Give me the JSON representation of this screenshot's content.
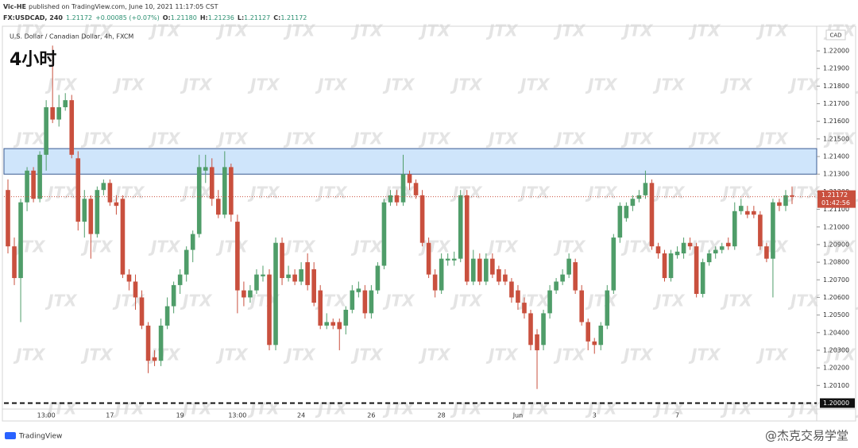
{
  "header": {
    "author": "Vic-HE",
    "published": "published on TradingView.com, June 10, 2021 11:17:05 CST",
    "symbol": "FX:USDCAD, 240",
    "last": "1.21172",
    "change": "+0.00085 (+0.07%)",
    "ohlc": [
      {
        "key": "O:",
        "value": "1.21180"
      },
      {
        "key": "H:",
        "value": "1.21236"
      },
      {
        "key": "L:",
        "value": "1.21127"
      },
      {
        "key": "C:",
        "value": "1.21172"
      }
    ]
  },
  "chart_data": {
    "type": "candlestick",
    "title": "U.S. Dollar / Canadian Dollar, 4h, FXCM",
    "annotation": "4小时",
    "currency": "CAD",
    "categories": [
      null,
      null,
      null,
      null,
      null,
      null,
      "13:00",
      null,
      null,
      null,
      null,
      null,
      null,
      null,
      null,
      null,
      "17",
      null,
      null,
      null,
      null,
      null,
      null,
      null,
      null,
      null,
      null,
      "19",
      null,
      null,
      null,
      null,
      null,
      null,
      null,
      null,
      "13:00",
      null,
      null,
      null,
      null,
      null,
      null,
      null,
      null,
      null,
      "24",
      null,
      null,
      null,
      null,
      null,
      null,
      null,
      null,
      null,
      null,
      "26",
      null,
      null,
      null,
      null,
      null,
      null,
      null,
      null,
      null,
      null,
      "28",
      null,
      null,
      null,
      null,
      null,
      null,
      null,
      null,
      null,
      null,
      null,
      "Jun",
      null,
      null,
      null,
      null,
      null,
      null,
      null,
      null,
      null,
      null,
      null,
      "3",
      null,
      null,
      null,
      null,
      null,
      null,
      null,
      null,
      null,
      null,
      null,
      null,
      "7",
      null,
      null,
      null,
      null,
      null,
      null,
      null,
      null,
      null,
      null,
      null,
      null,
      null,
      null,
      null,
      null,
      null,
      null
    ],
    "open": [
      1.2121,
      1.2089,
      1.2071,
      1.2114,
      1.2132,
      1.2116,
      1.2141,
      1.2168,
      1.2161,
      1.2168,
      1.2172,
      1.2139,
      1.2103,
      1.2116,
      1.2096,
      1.2121,
      1.2125,
      1.2114,
      1.2116,
      1.2073,
      1.2069,
      1.206,
      1.2044,
      1.2026,
      1.2024,
      1.2044,
      1.2055,
      1.2067,
      1.2073,
      1.2087,
      1.2096,
      1.2132,
      1.2134,
      1.2116,
      1.2107,
      1.2134,
      1.2103,
      1.2064,
      1.206,
      1.2064,
      1.2072,
      1.2073,
      1.2033,
      1.2091,
      1.2071,
      1.2073,
      1.2069,
      1.208,
      1.2076,
      1.2064,
      1.2044,
      1.2046,
      1.2046,
      1.2044,
      1.2053,
      1.2063,
      1.2064,
      1.2051,
      1.2064,
      1.2078,
      1.2114,
      1.2118,
      1.2114,
      1.213,
      1.2125,
      1.2118,
      1.2091,
      1.2073,
      1.2064,
      1.2081,
      1.2081,
      1.2082,
      1.2118,
      1.2069,
      1.2082,
      1.2069,
      1.2082,
      1.2076,
      1.2073,
      1.2069,
      1.2064,
      1.2057,
      1.2051,
      1.2039,
      1.2033,
      1.2051,
      1.2064,
      1.2069,
      1.2073,
      1.208,
      1.2064,
      1.2046,
      1.2035,
      1.2033,
      1.2044,
      1.2064,
      1.2094,
      1.2105,
      1.2112,
      1.2116,
      1.2118,
      1.2125,
      1.2089,
      1.2085,
      1.2071,
      1.2084,
      1.2085,
      1.2091,
      1.2089,
      1.2062,
      1.208,
      1.2085,
      1.2087,
      1.2091,
      1.2089,
      1.2109,
      1.2109,
      1.2109,
      1.2107,
      1.2089,
      1.2082,
      1.2114,
      1.2112,
      1.2118
    ],
    "high": [
      1.2127,
      1.2094,
      1.2116,
      1.2134,
      1.2134,
      1.2143,
      1.2172,
      1.2203,
      1.2175,
      1.2176,
      1.2175,
      1.2143,
      1.2121,
      1.2118,
      1.2123,
      1.2127,
      1.2127,
      1.2118,
      1.2118,
      1.2076,
      1.2073,
      1.2064,
      1.2046,
      1.203,
      1.2048,
      1.206,
      1.2069,
      1.2076,
      1.2089,
      1.2098,
      1.2141,
      1.2141,
      1.2139,
      1.2121,
      1.2143,
      1.2136,
      1.2107,
      1.2069,
      1.2067,
      1.2076,
      1.2078,
      1.2076,
      1.2094,
      1.2094,
      1.2078,
      1.2076,
      1.208,
      1.2085,
      1.208,
      1.2067,
      1.2051,
      1.2048,
      1.2048,
      1.2055,
      1.2067,
      1.2069,
      1.2067,
      1.2067,
      1.208,
      1.2116,
      1.2121,
      1.2121,
      1.2141,
      1.2132,
      1.2127,
      1.2121,
      1.2094,
      1.2076,
      1.2085,
      1.2085,
      1.2086,
      1.2121,
      1.2121,
      1.2087,
      1.2085,
      1.2085,
      1.2085,
      1.2078,
      1.2076,
      1.2071,
      1.2067,
      1.206,
      1.2053,
      1.2042,
      1.2053,
      1.2067,
      1.2071,
      1.2076,
      1.2085,
      1.2082,
      1.2067,
      1.2048,
      1.2037,
      1.2046,
      1.2067,
      1.2096,
      1.2114,
      1.2114,
      1.2118,
      1.2121,
      1.2132,
      1.2127,
      1.2091,
      1.2087,
      1.2087,
      1.2089,
      1.2094,
      1.2094,
      1.2091,
      1.2082,
      1.2087,
      1.2089,
      1.2091,
      1.2094,
      1.2114,
      1.2116,
      1.2112,
      1.2112,
      1.2109,
      1.2091,
      1.2116,
      1.2116,
      1.2121,
      1.2123
    ],
    "low": [
      1.2085,
      1.2067,
      1.2046,
      1.2109,
      1.2114,
      1.2114,
      1.2132,
      1.2159,
      1.2157,
      1.2166,
      1.2139,
      1.2098,
      1.2094,
      1.2082,
      1.2094,
      1.2118,
      1.2112,
      1.2107,
      1.2071,
      1.2064,
      1.2053,
      1.2042,
      1.2017,
      1.2021,
      1.2021,
      1.2042,
      1.2051,
      1.2062,
      1.2069,
      1.208,
      1.2094,
      1.2125,
      1.2112,
      1.2105,
      1.2105,
      1.2103,
      1.2051,
      1.2055,
      1.2057,
      1.2062,
      1.2069,
      1.203,
      1.203,
      1.2067,
      1.2069,
      1.2067,
      1.2067,
      1.2064,
      1.2055,
      1.2042,
      1.2042,
      1.2042,
      1.203,
      1.2039,
      1.2051,
      1.206,
      1.2048,
      1.2048,
      1.2062,
      1.2076,
      1.2112,
      1.2112,
      1.2112,
      1.2121,
      1.2116,
      1.2089,
      1.2071,
      1.206,
      1.2062,
      1.2078,
      1.2078,
      1.208,
      1.2067,
      1.2067,
      1.2067,
      1.2067,
      1.2071,
      1.2067,
      1.2067,
      1.2057,
      1.2053,
      1.2048,
      1.203,
      1.2008,
      1.203,
      1.2048,
      1.2062,
      1.2067,
      1.2071,
      1.2062,
      1.2044,
      1.203,
      1.2028,
      1.203,
      1.2042,
      1.2062,
      1.2091,
      1.2103,
      1.2109,
      1.2114,
      1.2116,
      1.2087,
      1.2082,
      1.2069,
      1.2069,
      1.2082,
      1.2082,
      1.2087,
      1.206,
      1.206,
      1.2078,
      1.2082,
      1.2085,
      1.2087,
      1.2087,
      1.2107,
      1.2105,
      1.2105,
      1.2087,
      1.208,
      1.206,
      1.2109,
      1.2109,
      1.2113
    ],
    "close": [
      1.2089,
      1.2071,
      1.2114,
      1.2132,
      1.2116,
      1.2141,
      1.2168,
      1.2161,
      1.2168,
      1.2172,
      1.2141,
      1.2103,
      1.2116,
      1.2096,
      1.2121,
      1.2125,
      1.2114,
      1.2112,
      1.2073,
      1.2069,
      1.206,
      1.2044,
      1.2024,
      1.2024,
      1.2044,
      1.2055,
      1.2067,
      1.2073,
      1.2087,
      1.2096,
      1.2134,
      1.2134,
      1.2116,
      1.2107,
      1.2134,
      1.2107,
      1.2064,
      1.206,
      1.2064,
      1.2073,
      1.2073,
      1.2033,
      1.2091,
      1.2071,
      1.2073,
      1.2069,
      1.2076,
      1.2067,
      1.2057,
      1.2044,
      1.2046,
      1.2044,
      1.2042,
      1.2053,
      1.2064,
      1.2065,
      1.2051,
      1.2064,
      1.2078,
      1.2114,
      1.2118,
      1.2114,
      1.213,
      1.2125,
      1.2118,
      1.2091,
      1.2073,
      1.2064,
      1.2082,
      1.2082,
      1.2082,
      1.2118,
      1.2069,
      1.2082,
      1.2069,
      1.2082,
      1.2073,
      1.2069,
      1.2069,
      1.206,
      1.2057,
      1.2051,
      1.2033,
      1.203,
      1.2051,
      1.2064,
      1.2069,
      1.2073,
      1.2082,
      1.2064,
      1.2046,
      1.2035,
      1.2033,
      1.2044,
      1.2064,
      1.2094,
      1.2112,
      1.2112,
      1.2116,
      1.2118,
      1.2125,
      1.2089,
      1.2085,
      1.2071,
      1.2085,
      1.2086,
      1.2091,
      1.2089,
      1.2062,
      1.208,
      1.2085,
      1.2087,
      1.2089,
      1.2089,
      1.2109,
      1.2112,
      1.2107,
      1.2107,
      1.2089,
      1.2082,
      1.2114,
      1.2112,
      1.2118,
      1.21172
    ],
    "up_color": "#4f9d69",
    "down_color": "#c9503e",
    "ylim": [
      1.19966,
      1.22131
    ],
    "yticks": [
      {
        "value": 1.201,
        "label": "1.20100"
      },
      {
        "value": 1.202,
        "label": "1.20200"
      },
      {
        "value": 1.203,
        "label": "1.20300"
      },
      {
        "value": 1.204,
        "label": "1.20400"
      },
      {
        "value": 1.205,
        "label": "1.20500"
      },
      {
        "value": 1.206,
        "label": "1.20600"
      },
      {
        "value": 1.207,
        "label": "1.20700"
      },
      {
        "value": 1.208,
        "label": "1.20800"
      },
      {
        "value": 1.209,
        "label": "1.20900"
      },
      {
        "value": 1.21,
        "label": "1.21000"
      },
      {
        "value": 1.211,
        "label": "1.21100"
      },
      {
        "value": 1.212,
        "label": "1.21200"
      },
      {
        "value": 1.213,
        "label": "1.21300"
      },
      {
        "value": 1.214,
        "label": "1.21400"
      },
      {
        "value": 1.215,
        "label": "1.21500"
      },
      {
        "value": 1.216,
        "label": "1.21600"
      },
      {
        "value": 1.217,
        "label": "1.21700"
      },
      {
        "value": 1.218,
        "label": "1.21800"
      },
      {
        "value": 1.219,
        "label": "1.21900"
      },
      {
        "value": 1.22,
        "label": "1.22000"
      }
    ],
    "grid": false,
    "zone": [
      1.213,
      1.21445
    ],
    "zone_color": "#cfe5fb",
    "hline": {
      "value": 1.2,
      "label": "1.20000"
    },
    "last_price": {
      "value": 1.21172,
      "label": "1.21172"
    },
    "countdown": "01:42:56",
    "watermark": "JTX",
    "brand": "TradingView",
    "credit": "@杰克交易学堂"
  }
}
